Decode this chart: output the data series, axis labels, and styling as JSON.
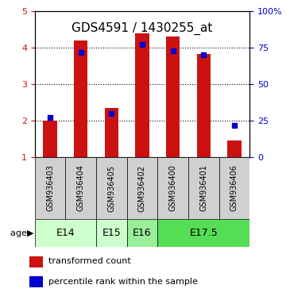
{
  "title": "GDS4591 / 1430255_at",
  "samples": [
    "GSM936403",
    "GSM936404",
    "GSM936405",
    "GSM936402",
    "GSM936400",
    "GSM936401",
    "GSM936406"
  ],
  "transformed_count": [
    2.0,
    4.2,
    2.35,
    4.4,
    4.3,
    3.82,
    1.45
  ],
  "percentile_rank": [
    27,
    72,
    30,
    77,
    73,
    70,
    22
  ],
  "age_groups": [
    {
      "label": "E14",
      "samples": [
        0,
        1
      ],
      "color": "#ccffcc"
    },
    {
      "label": "E15",
      "samples": [
        2
      ],
      "color": "#ccffcc"
    },
    {
      "label": "E16",
      "samples": [
        3
      ],
      "color": "#99ee99"
    },
    {
      "label": "E17.5",
      "samples": [
        4,
        5,
        6
      ],
      "color": "#55dd55"
    }
  ],
  "bar_color": "#cc1111",
  "marker_color": "#0000cc",
  "left_ylim": [
    1,
    5
  ],
  "right_ylim": [
    0,
    100
  ],
  "left_yticks": [
    1,
    2,
    3,
    4,
    5
  ],
  "right_yticks": [
    0,
    25,
    50,
    75,
    100
  ],
  "left_tick_color": "#cc1111",
  "right_tick_color": "#0000cc",
  "title_fontsize": 11,
  "axis_fontsize": 8,
  "legend_fontsize": 8,
  "sample_label_fontsize": 7,
  "age_label_fontsize": 9
}
